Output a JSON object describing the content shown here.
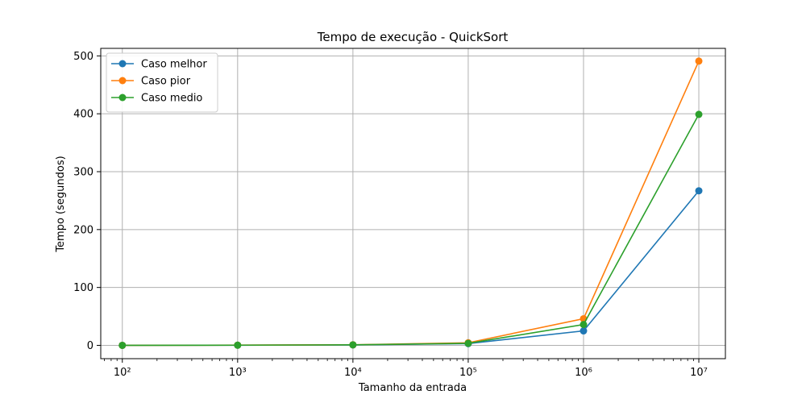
{
  "chart_data": {
    "type": "line",
    "title": "Tempo de execução - QuickSort",
    "xlabel": "Tamanho da entrada",
    "ylabel": "Tempo (segundos)",
    "x": [
      100,
      1000,
      10000,
      100000,
      1000000,
      10000000
    ],
    "x_tick_labels": [
      "10²",
      "10³",
      "10⁴",
      "10⁵",
      "10⁶",
      "10⁷"
    ],
    "x_scale": "log",
    "xlim": [
      65,
      17000000
    ],
    "ylim": [
      -23,
      513
    ],
    "y_ticks": [
      0,
      100,
      200,
      300,
      400,
      500
    ],
    "grid": true,
    "legend_position": "top-left",
    "series": [
      {
        "name": "Caso melhor",
        "color": "#1f77b4",
        "values": [
          0.02,
          0.25,
          0.8,
          3,
          25,
          267
        ]
      },
      {
        "name": "Caso pior",
        "color": "#ff7f0e",
        "values": [
          0.03,
          0.4,
          1.0,
          4.5,
          46,
          491
        ]
      },
      {
        "name": "Caso medio",
        "color": "#2ca02c",
        "values": [
          0.02,
          0.3,
          0.9,
          3.5,
          36,
          399
        ]
      }
    ]
  }
}
